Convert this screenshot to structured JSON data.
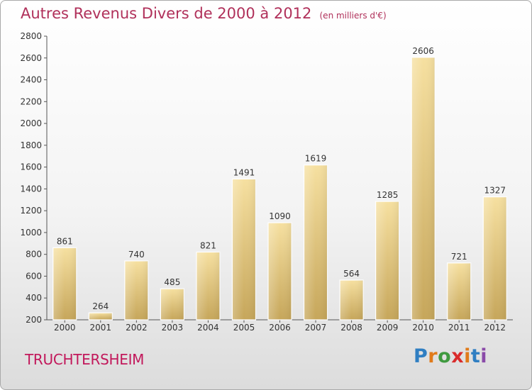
{
  "title": {
    "main": "Autres Revenus Divers de 2000 à 2012",
    "sub": "(en milliers d'€)"
  },
  "place": "TRUCHTERSHEIM",
  "logo": {
    "text": "Proxiti",
    "letters": [
      "P",
      "r",
      "o",
      "x",
      "i",
      "t",
      "i"
    ],
    "colors": [
      "#2f7ec2",
      "#e07a1a",
      "#3f9a3f",
      "#d92b2b",
      "#e07a1a",
      "#2f7ec2",
      "#8a4aa8"
    ]
  },
  "colors": {
    "bar_light": "#f6e0a0",
    "bar_dark": "#c8a85c",
    "title": "#b0305a",
    "place": "#c2185b"
  },
  "chart_data": {
    "type": "bar",
    "title": "Autres Revenus Divers de 2000 à 2012",
    "subtitle": "(en milliers d'€)",
    "categories": [
      "2000",
      "2001",
      "2002",
      "2003",
      "2004",
      "2005",
      "2006",
      "2007",
      "2008",
      "2009",
      "2010",
      "2011",
      "2012"
    ],
    "values": [
      861,
      264,
      740,
      485,
      821,
      1491,
      1090,
      1619,
      564,
      1285,
      2606,
      721,
      1327
    ],
    "ylim": [
      200,
      2800
    ],
    "yticks": [
      200,
      400,
      600,
      800,
      1000,
      1200,
      1400,
      1600,
      1800,
      2000,
      2200,
      2400,
      2600,
      2800
    ],
    "grid": false,
    "xlabel": "",
    "ylabel": ""
  }
}
